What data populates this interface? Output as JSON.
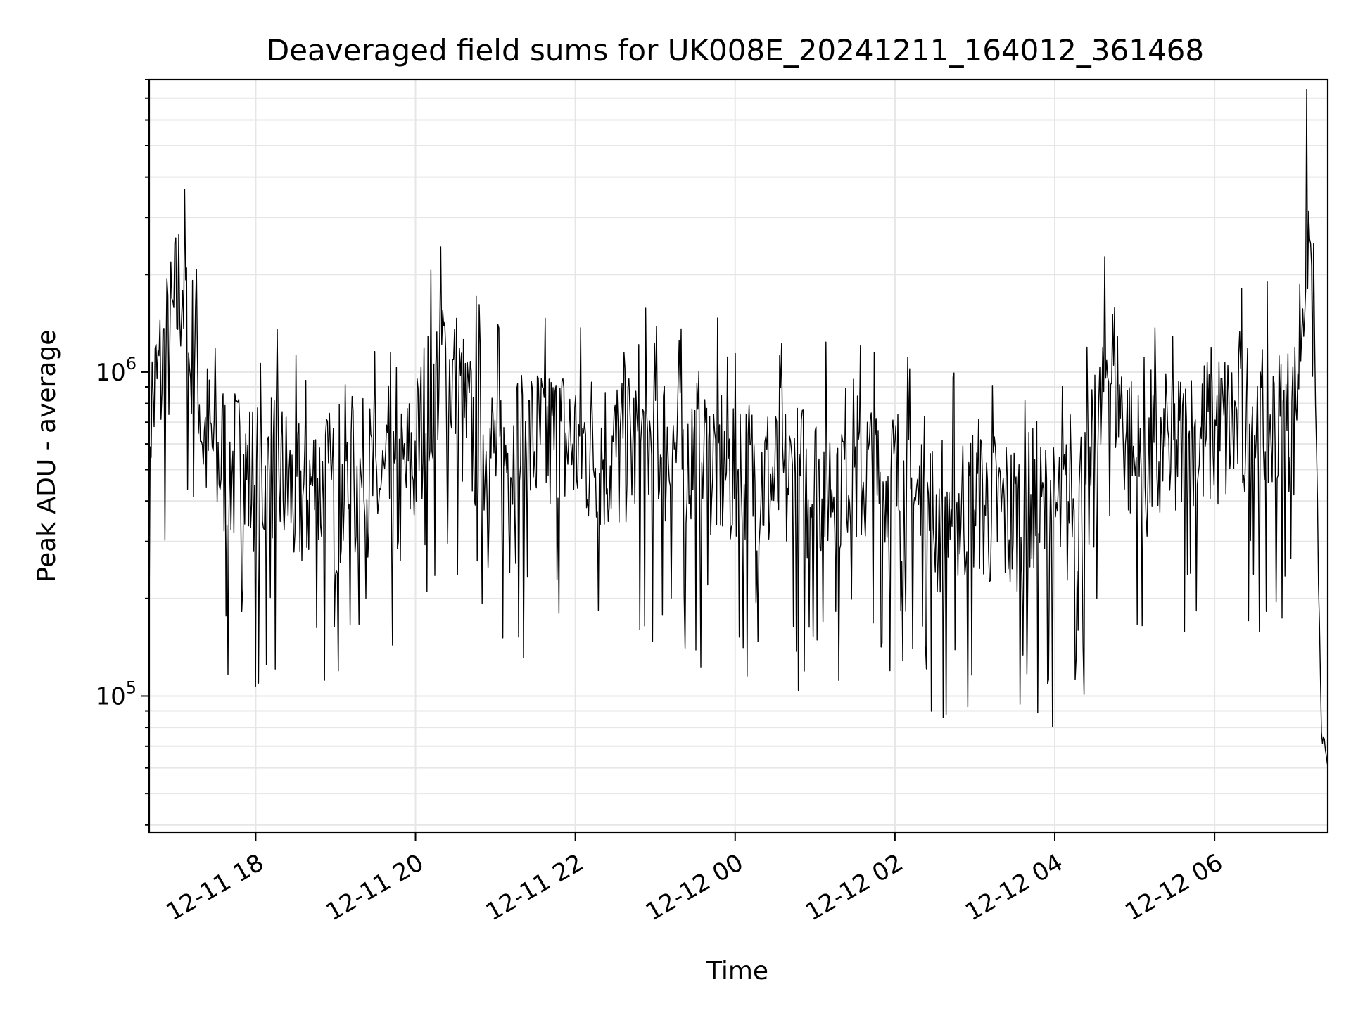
{
  "chart_data": {
    "type": "line",
    "title": "Deaveraged field sums for UK008E_20241211_164012_361468",
    "xlabel": "Time",
    "ylabel": "Peak ADU - average",
    "yscale": "log",
    "grid": true,
    "xlim": [
      "2024-12-11 16:40",
      "2024-12-12 07:25"
    ],
    "ylim": [
      38000,
      8000000
    ],
    "x_ticks": [
      "2024-12-11 18:00",
      "2024-12-11 20:00",
      "2024-12-11 22:00",
      "2024-12-12 00:00",
      "2024-12-12 02:00",
      "2024-12-12 04:00",
      "2024-12-12 06:00"
    ],
    "x_tick_labels": [
      "12-11 18",
      "12-11 20",
      "12-11 22",
      "12-12 00",
      "12-12 02",
      "12-12 04",
      "12-12 06"
    ],
    "y_ticks": [
      100000,
      1000000
    ],
    "y_tick_labels": [
      {
        "base": "10",
        "exp": "5"
      },
      {
        "base": "10",
        "exp": "6"
      }
    ],
    "series": [
      {
        "color": "#000000",
        "x": [
          "2024-12-11 16:40",
          "2024-12-11 16:55",
          "2024-12-11 17:05",
          "2024-12-11 17:10",
          "2024-12-11 17:15",
          "2024-12-11 17:20",
          "2024-12-11 17:30",
          "2024-12-11 17:45",
          "2024-12-11 18:00",
          "2024-12-11 18:15",
          "2024-12-11 18:30",
          "2024-12-11 18:45",
          "2024-12-11 19:00",
          "2024-12-11 19:15",
          "2024-12-11 19:30",
          "2024-12-11 19:45",
          "2024-12-11 20:00",
          "2024-12-11 20:10",
          "2024-12-11 20:20",
          "2024-12-11 20:30",
          "2024-12-11 20:40",
          "2024-12-11 21:00",
          "2024-12-11 21:30",
          "2024-12-11 22:00",
          "2024-12-11 22:30",
          "2024-12-11 22:50",
          "2024-12-11 23:00",
          "2024-12-11 23:30",
          "2024-12-12 00:00",
          "2024-12-12 00:30",
          "2024-12-12 01:00",
          "2024-12-12 01:30",
          "2024-12-12 02:00",
          "2024-12-12 02:30",
          "2024-12-12 03:00",
          "2024-12-12 03:30",
          "2024-12-12 04:00",
          "2024-12-12 04:30",
          "2024-12-12 04:40",
          "2024-12-12 05:00",
          "2024-12-12 05:30",
          "2024-12-12 06:00",
          "2024-12-12 06:30",
          "2024-12-12 06:50",
          "2024-12-12 07:00",
          "2024-12-12 07:05",
          "2024-12-12 07:10",
          "2024-12-12 07:15",
          "2024-12-12 07:20",
          "2024-12-12 07:25"
        ],
        "y": [
          750000,
          1200000,
          2000000,
          1000000,
          1300000,
          650000,
          550000,
          500000,
          450000,
          500000,
          400000,
          450000,
          400000,
          450000,
          450000,
          400000,
          550000,
          800000,
          1100000,
          900000,
          650000,
          550000,
          600000,
          600000,
          550000,
          600000,
          600000,
          550000,
          500000,
          450000,
          450000,
          500000,
          450000,
          350000,
          400000,
          350000,
          350000,
          450000,
          1200000,
          500000,
          550000,
          650000,
          700000,
          650000,
          700000,
          1500000,
          3000000,
          1300000,
          80000,
          55000
        ]
      }
    ]
  }
}
